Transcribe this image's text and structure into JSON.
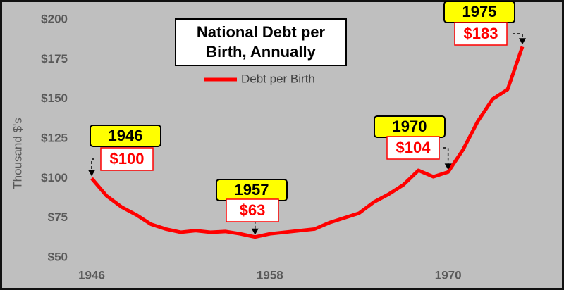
{
  "chart_data": {
    "type": "line",
    "title": "National Debt per Birth, Annually",
    "y_label": "Thousand $'s",
    "x": [
      1946,
      1947,
      1948,
      1949,
      1950,
      1951,
      1952,
      1953,
      1954,
      1955,
      1956,
      1957,
      1958,
      1959,
      1960,
      1961,
      1962,
      1963,
      1964,
      1965,
      1966,
      1967,
      1968,
      1969,
      1970,
      1971,
      1972,
      1973,
      1974,
      1975
    ],
    "series": [
      {
        "name": "Debt per Birth",
        "color": "#ff0000",
        "values": [
          100,
          89,
          82,
          77,
          71,
          68,
          66,
          67,
          66,
          66.5,
          65,
          63,
          65,
          66,
          67,
          68,
          72,
          75,
          78,
          85,
          90,
          96,
          105,
          101,
          104,
          118,
          136,
          150,
          156,
          183
        ]
      }
    ],
    "xlim": [
      1946,
      1975
    ],
    "xticks": [
      1946,
      1958,
      1970
    ],
    "ylim": [
      50,
      200
    ],
    "yticks": [
      {
        "value": 50,
        "label": "$50"
      },
      {
        "value": 75,
        "label": "$75"
      },
      {
        "value": 100,
        "label": "$100"
      },
      {
        "value": 125,
        "label": "$125"
      },
      {
        "value": 150,
        "label": "$150"
      },
      {
        "value": 175,
        "label": "$175"
      },
      {
        "value": 200,
        "label": "$200"
      }
    ],
    "annotations": [
      {
        "x": 1946,
        "y": 100,
        "year_label": "1946",
        "value_label": "$100"
      },
      {
        "x": 1957,
        "y": 63,
        "year_label": "1957",
        "value_label": "$63"
      },
      {
        "x": 1970,
        "y": 104,
        "year_label": "1970",
        "value_label": "$104"
      },
      {
        "x": 1975,
        "y": 183,
        "year_label": "1975",
        "value_label": "$183"
      }
    ]
  }
}
